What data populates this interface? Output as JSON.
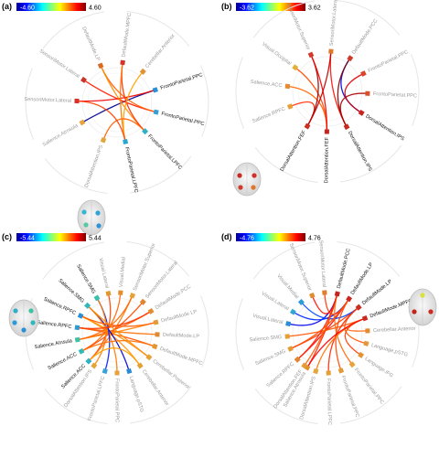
{
  "panels": [
    {
      "id": "a",
      "label": "(a)",
      "cbar_min": "-4.60",
      "cbar_max": "4.60",
      "hub_from": "right",
      "nodes": [
        {
          "name": "Salience.Atrnsula",
          "color": "#e8a33a",
          "hi": false
        },
        {
          "name": "SensoriMotor.Lateral",
          "color": "#d9302a",
          "hi": false
        },
        {
          "name": "SensoriMotor.Lateral",
          "color": "#c8352b",
          "hi": false
        },
        {
          "name": "DefaultMode.LP",
          "color": "#d86a24",
          "hi": false
        },
        {
          "name": "DefaultMode.MPFC",
          "color": "#d0342b",
          "hi": false
        },
        {
          "name": "Cerebellar.Anterior",
          "color": "#e19234",
          "hi": false
        },
        {
          "name": "FrontoParietal.PPC",
          "color": "#2c8fd6",
          "hi": true
        },
        {
          "name": "FrontoParietal.PPC",
          "color": "#33a1d8",
          "hi": true
        },
        {
          "name": "FrontoParietal.LPFC",
          "color": "#2fb1c8",
          "hi": true
        },
        {
          "name": "FrontoParietal.LPFC",
          "color": "#29a5d1",
          "hi": true
        },
        {
          "name": "DorsalAttention.IPS",
          "color": "#e3a338",
          "hi": false
        }
      ],
      "edges": [
        {
          "from": 0,
          "to": 6,
          "value": -4.6
        },
        {
          "from": 1,
          "to": 6,
          "value": 3.6
        },
        {
          "from": 2,
          "to": 7,
          "value": 3.2
        },
        {
          "from": 3,
          "to": 7,
          "value": 2.6
        },
        {
          "from": 3,
          "to": 8,
          "value": 2.2
        },
        {
          "from": 4,
          "to": 8,
          "value": 3.0
        },
        {
          "from": 4,
          "to": 9,
          "value": 2.4
        },
        {
          "from": 5,
          "to": 9,
          "value": 2.0
        },
        {
          "from": 10,
          "to": 8,
          "value": 2.6
        },
        {
          "from": 1,
          "to": 9,
          "value": 2.9
        }
      ]
    },
    {
      "id": "b",
      "label": "(b)",
      "cbar_min": "-3.62",
      "cbar_max": "3.62",
      "hub_from": "right",
      "nodes": [
        {
          "name": "Salience.RPFC",
          "color": "#e5a034",
          "hi": false
        },
        {
          "name": "Salience.ACC",
          "color": "#e58a30",
          "hi": false
        },
        {
          "name": "Visual.Occipital",
          "color": "#e3b03a",
          "hi": false
        },
        {
          "name": "SensoriMotor.Superior",
          "color": "#d33a2b",
          "hi": false
        },
        {
          "name": "SensoriMotor.Lateral",
          "color": "#e07a2b",
          "hi": false
        },
        {
          "name": "DefaultMode.PCC",
          "color": "#cf3a2a",
          "hi": false
        },
        {
          "name": "FrontoParietal.PPC",
          "color": "#d9442a",
          "hi": false
        },
        {
          "name": "FrontoParietal.PPC",
          "color": "#d8502a",
          "hi": false
        },
        {
          "name": "DorsalAttention.IPS",
          "color": "#c8231f",
          "hi": true
        },
        {
          "name": "DorsalAttention.IPS",
          "color": "#c62a21",
          "hi": true
        },
        {
          "name": "DorsalAttention.FEF",
          "color": "#c5241f",
          "hi": true
        },
        {
          "name": "DorsalAttention.FEF",
          "color": "#cc2e22",
          "hi": true
        }
      ],
      "edges": [
        {
          "from": 0,
          "to": 11,
          "value": 2.4
        },
        {
          "from": 1,
          "to": 10,
          "value": 2.0
        },
        {
          "from": 2,
          "to": 10,
          "value": 2.2
        },
        {
          "from": 3,
          "to": 11,
          "value": 3.4
        },
        {
          "from": 4,
          "to": 9,
          "value": 2.6
        },
        {
          "from": 5,
          "to": 8,
          "value": -3.0
        },
        {
          "from": 5,
          "to": 9,
          "value": 3.6
        },
        {
          "from": 6,
          "to": 8,
          "value": 3.0
        },
        {
          "from": 7,
          "to": 9,
          "value": 3.3
        },
        {
          "from": 3,
          "to": 10,
          "value": 2.8
        },
        {
          "from": 4,
          "to": 11,
          "value": 3.2
        }
      ]
    },
    {
      "id": "c",
      "label": "(c)",
      "cbar_min": "-5.44",
      "cbar_max": "5.44",
      "hub_from": "left",
      "nodes": [
        {
          "name": "Salience.ACC",
          "color": "#2fb0c8",
          "hi": true
        },
        {
          "name": "Salience.ACC",
          "color": "#33b9b8",
          "hi": true
        },
        {
          "name": "Salience.AInsula",
          "color": "#3cc2a4",
          "hi": true
        },
        {
          "name": "Salience.RPFC",
          "color": "#2d9bd6",
          "hi": true
        },
        {
          "name": "Salience.RPFC",
          "color": "#2a8fd6",
          "hi": true
        },
        {
          "name": "Salience.SMG",
          "color": "#33b7bd",
          "hi": true
        },
        {
          "name": "Salience.SMG",
          "color": "#38c0ad",
          "hi": true
        },
        {
          "name": "Visual.Lateral",
          "color": "#e0982f",
          "hi": false
        },
        {
          "name": "Visual.Medial",
          "color": "#e28d2f",
          "hi": false
        },
        {
          "name": "SensoriMotor.Superior",
          "color": "#e6a236",
          "hi": false
        },
        {
          "name": "SensoriMotor.Lateral",
          "color": "#de8530",
          "hi": false
        },
        {
          "name": "DefaultMode.PCC",
          "color": "#e08c31",
          "hi": false
        },
        {
          "name": "DefaultMode.LP",
          "color": "#e39a33",
          "hi": false
        },
        {
          "name": "DefaultMode.LP",
          "color": "#df8a30",
          "hi": false
        },
        {
          "name": "DefaultMode.MPFC",
          "color": "#e29632",
          "hi": false
        },
        {
          "name": "Cerebellar.Posterior",
          "color": "#e5a036",
          "hi": false
        },
        {
          "name": "Cerebellar.Anterior",
          "color": "#e3a035",
          "hi": false
        },
        {
          "name": "Language.pSTG",
          "color": "#2a8ad6",
          "hi": false
        },
        {
          "name": "FrontoParietal.PPC",
          "color": "#e6a13a",
          "hi": false
        },
        {
          "name": "FrontoParietal.LPFC",
          "color": "#3aa3d6",
          "hi": false
        },
        {
          "name": "DorsalAttention.IPS",
          "color": "#e5a53a",
          "hi": false
        }
      ],
      "edges": [
        {
          "from": 0,
          "to": 7,
          "value": 3.4
        },
        {
          "from": 0,
          "to": 9,
          "value": 2.8
        },
        {
          "from": 1,
          "to": 8,
          "value": 3.0
        },
        {
          "from": 1,
          "to": 10,
          "value": 3.3
        },
        {
          "from": 2,
          "to": 11,
          "value": 3.1
        },
        {
          "from": 2,
          "to": 12,
          "value": 2.7
        },
        {
          "from": 3,
          "to": 13,
          "value": 2.9
        },
        {
          "from": 3,
          "to": 14,
          "value": 3.2
        },
        {
          "from": 4,
          "to": 15,
          "value": 2.6
        },
        {
          "from": 4,
          "to": 16,
          "value": 2.5
        },
        {
          "from": 5,
          "to": 17,
          "value": -4.6
        },
        {
          "from": 5,
          "to": 18,
          "value": 2.8
        },
        {
          "from": 6,
          "to": 19,
          "value": -3.8
        },
        {
          "from": 6,
          "to": 20,
          "value": 2.7
        },
        {
          "from": 2,
          "to": 9,
          "value": 3.0
        },
        {
          "from": 3,
          "to": 11,
          "value": 3.5
        },
        {
          "from": 4,
          "to": 12,
          "value": 3.1
        },
        {
          "from": 1,
          "to": 14,
          "value": 2.9
        },
        {
          "from": 0,
          "to": 16,
          "value": 2.4
        },
        {
          "from": 5,
          "to": 15,
          "value": 2.6
        }
      ]
    },
    {
      "id": "d",
      "label": "(d)",
      "cbar_min": "-4.76",
      "cbar_max": "4.76",
      "hub_from": "right",
      "nodes": [
        {
          "name": "Salience.Atrnsula",
          "color": "#e1902f",
          "hi": false
        },
        {
          "name": "Salience.RPFC",
          "color": "#df8630",
          "hi": false
        },
        {
          "name": "Salience.SMG",
          "color": "#e49a33",
          "hi": false
        },
        {
          "name": "Salience.SMG",
          "color": "#e5a036",
          "hi": false
        },
        {
          "name": "Visual.Lateral",
          "color": "#2b8ed6",
          "hi": false
        },
        {
          "name": "Visual.Lateral",
          "color": "#34a6d4",
          "hi": false
        },
        {
          "name": "Visual.Medial",
          "color": "#2f9bd6",
          "hi": false
        },
        {
          "name": "SensoriMotor.Superior",
          "color": "#e28c30",
          "hi": false
        },
        {
          "name": "SensoriMotor.Lateral",
          "color": "#de7e2e",
          "hi": false
        },
        {
          "name": "DefaultMode.PCC",
          "color": "#c5231f",
          "hi": true
        },
        {
          "name": "DefaultMode.LP",
          "color": "#c9261f",
          "hi": true
        },
        {
          "name": "DefaultMode.LP",
          "color": "#cc2b21",
          "hi": true
        },
        {
          "name": "DefaultMode.MPFC",
          "color": "#c82a21",
          "hi": true
        },
        {
          "name": "Cerebellar.Anterior",
          "color": "#e08c31",
          "hi": false
        },
        {
          "name": "Language.pSTG",
          "color": "#e4983a",
          "hi": false
        },
        {
          "name": "Language.IFG",
          "color": "#e29334",
          "hi": false
        },
        {
          "name": "FrontoParietal.PPC",
          "color": "#e6a33a",
          "hi": false
        },
        {
          "name": "FrontoParietal.PPC",
          "color": "#e19a36",
          "hi": false
        },
        {
          "name": "FrontoParietal.LPFC",
          "color": "#e3a038",
          "hi": false
        },
        {
          "name": "DorsalAttention.IPS",
          "color": "#e5a53a",
          "hi": false
        },
        {
          "name": "DorsalAttention.FEF",
          "color": "#e39d36",
          "hi": false
        }
      ],
      "edges": [
        {
          "from": 0,
          "to": 9,
          "value": 3.2
        },
        {
          "from": 1,
          "to": 10,
          "value": 3.5
        },
        {
          "from": 2,
          "to": 11,
          "value": 3.0
        },
        {
          "from": 3,
          "to": 12,
          "value": 2.8
        },
        {
          "from": 4,
          "to": 9,
          "value": -3.8
        },
        {
          "from": 5,
          "to": 10,
          "value": -3.2
        },
        {
          "from": 6,
          "to": 11,
          "value": -2.9
        },
        {
          "from": 7,
          "to": 9,
          "value": 3.4
        },
        {
          "from": 8,
          "to": 10,
          "value": 3.1
        },
        {
          "from": 13,
          "to": 12,
          "value": 2.7
        },
        {
          "from": 14,
          "to": 11,
          "value": 2.8
        },
        {
          "from": 15,
          "to": 12,
          "value": 3.0
        },
        {
          "from": 16,
          "to": 9,
          "value": 2.6
        },
        {
          "from": 17,
          "to": 10,
          "value": 2.9
        },
        {
          "from": 18,
          "to": 11,
          "value": 3.2
        },
        {
          "from": 19,
          "to": 12,
          "value": 2.5
        },
        {
          "from": 20,
          "to": 9,
          "value": 2.7
        },
        {
          "from": 0,
          "to": 12,
          "value": 3.6
        },
        {
          "from": 1,
          "to": 9,
          "value": 3.3
        },
        {
          "from": 2,
          "to": 10,
          "value": 2.9
        }
      ]
    }
  ]
}
